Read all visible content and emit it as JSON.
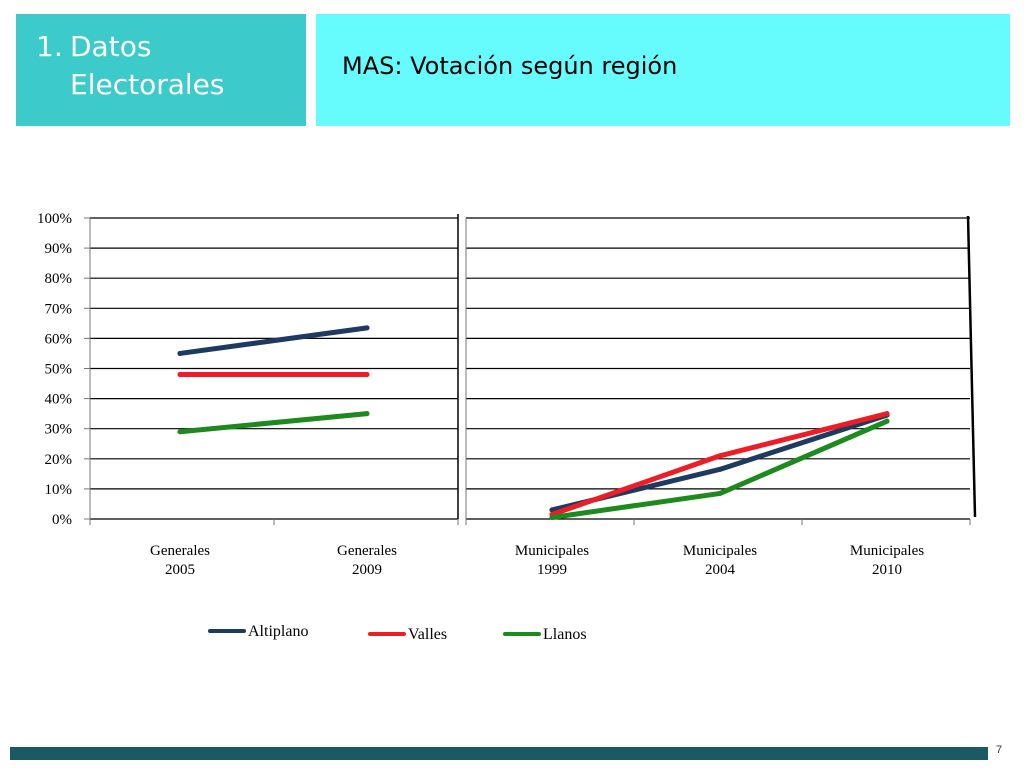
{
  "header": {
    "section_number": "1.",
    "section_line1": "Datos",
    "section_line2": "Electorales",
    "title": "MAS: Votación según región"
  },
  "colors": {
    "section_box": "#3ccacb",
    "title_box": "#66fcfd",
    "footer_bar": "#1a5a64",
    "Altiplano": "#1f3a60",
    "Valles": "#ee1c24",
    "Llanos": "#1d8a1d"
  },
  "chart_data": [
    {
      "type": "line",
      "title": "",
      "xlabel": "",
      "ylabel": "",
      "ylim": [
        0,
        1
      ],
      "y_tick_labels": [
        "0%",
        "10%",
        "20%",
        "30%",
        "40%",
        "50%",
        "60%",
        "70%",
        "80%",
        "90%",
        "100%"
      ],
      "grid": true,
      "legend": "bottom",
      "categories": [
        "Generales 2005",
        "Generales 2009"
      ],
      "series": [
        {
          "name": "Altiplano",
          "values": [
            0.55,
            0.635
          ]
        },
        {
          "name": "Valles",
          "values": [
            0.48,
            0.48
          ]
        },
        {
          "name": "Llanos",
          "values": [
            0.29,
            0.35
          ]
        }
      ]
    },
    {
      "type": "line",
      "title": "",
      "xlabel": "",
      "ylabel": "",
      "ylim": [
        0,
        1
      ],
      "grid": true,
      "legend": "bottom",
      "categories": [
        "Municipales 1999",
        "Municipales 2004",
        "Municipales 2010"
      ],
      "series": [
        {
          "name": "Altiplano",
          "values": [
            0.03,
            0.165,
            0.345
          ]
        },
        {
          "name": "Valles",
          "values": [
            0.015,
            0.21,
            0.35
          ]
        },
        {
          "name": "Llanos",
          "values": [
            0.005,
            0.085,
            0.325
          ]
        }
      ]
    }
  ],
  "legend_items": [
    {
      "name": "Altiplano"
    },
    {
      "name": "Valles"
    },
    {
      "name": "Llanos"
    }
  ],
  "footer": {
    "page_number": "7"
  }
}
